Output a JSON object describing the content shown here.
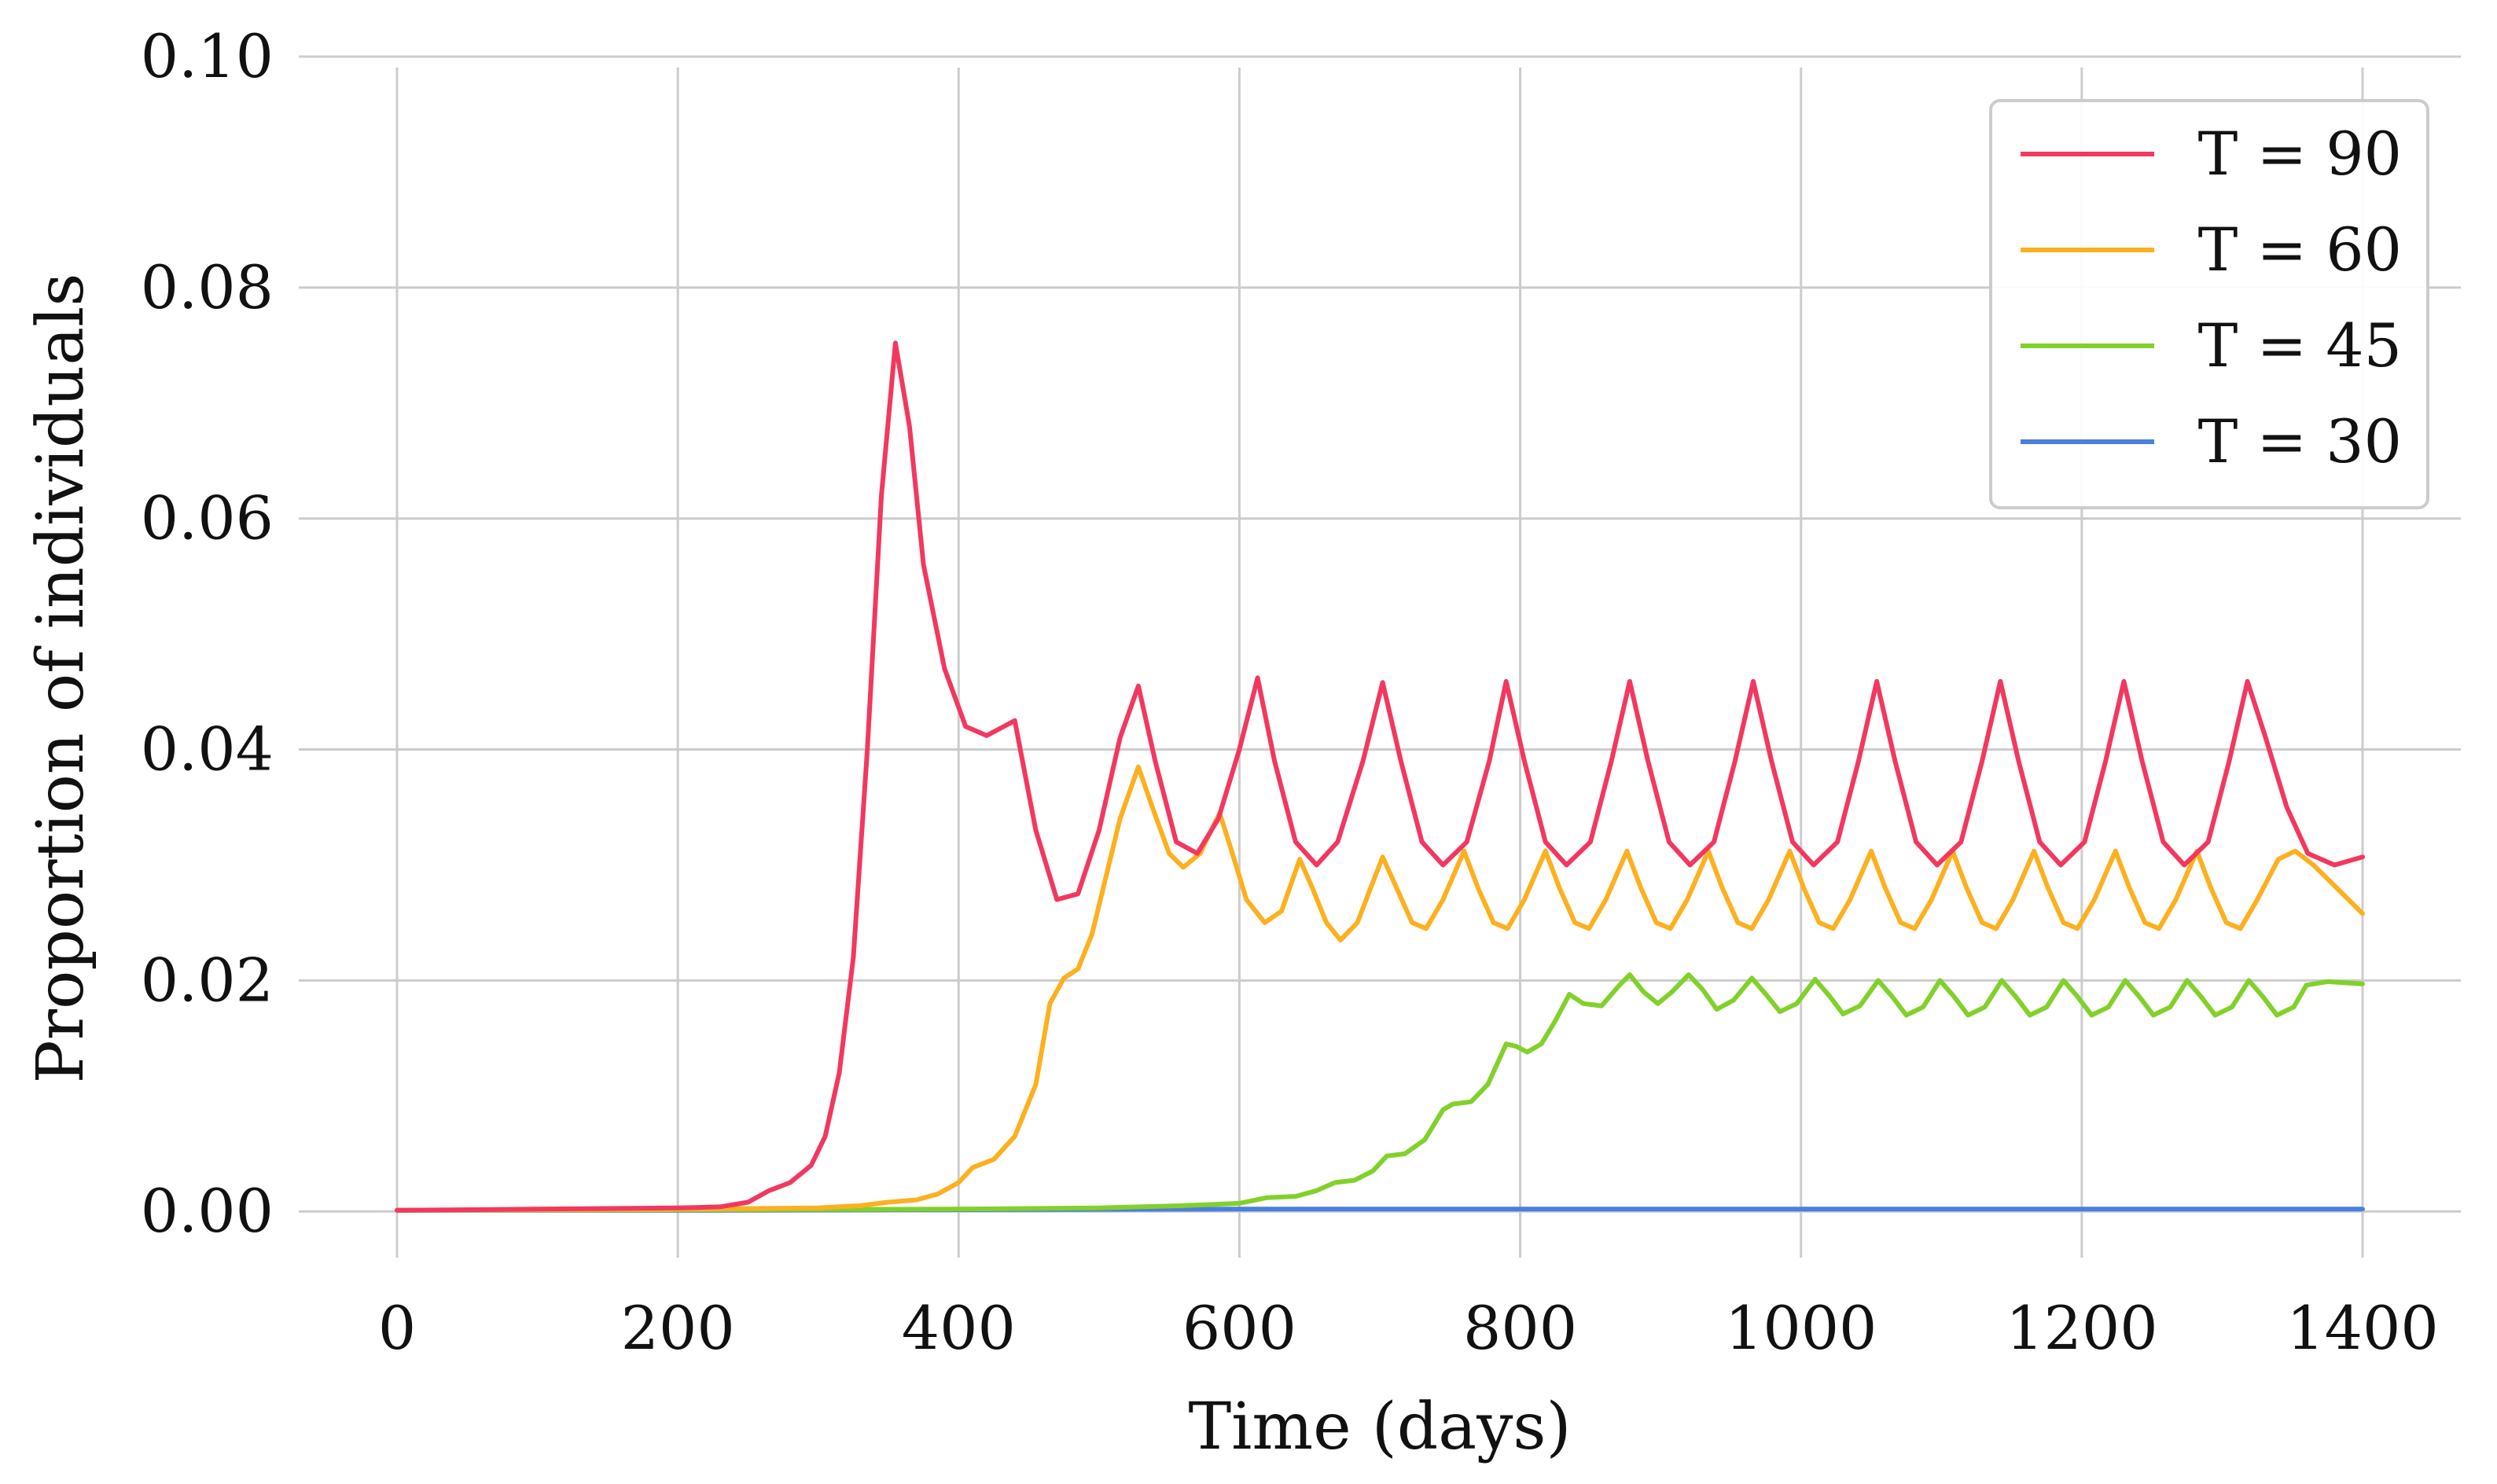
{
  "chart_data": {
    "type": "line",
    "xlabel": "Time (days)",
    "ylabel": "Proportion of individuals",
    "xlim": [
      -70,
      1470
    ],
    "ylim": [
      -0.004,
      0.1
    ],
    "x_ticks": [
      "0",
      "200",
      "400",
      "600",
      "800",
      "1000",
      "1200",
      "1400"
    ],
    "y_ticks": [
      "0.00",
      "0.02",
      "0.04",
      "0.06",
      "0.08",
      "0.10"
    ],
    "grid": true,
    "legend_position": "top-right",
    "series": [
      {
        "name": "T = 90",
        "color": "#f2385f",
        "points": [
          [
            0,
            0.0001
          ],
          [
            100,
            0.0002
          ],
          [
            200,
            0.0003
          ],
          [
            230,
            0.0004
          ],
          [
            250,
            0.0008
          ],
          [
            265,
            0.0018
          ],
          [
            280,
            0.0025
          ],
          [
            295,
            0.004
          ],
          [
            305,
            0.0065
          ],
          [
            315,
            0.012
          ],
          [
            325,
            0.022
          ],
          [
            335,
            0.04
          ],
          [
            345,
            0.062
          ],
          [
            355,
            0.0752
          ],
          [
            365,
            0.068
          ],
          [
            375,
            0.056
          ],
          [
            390,
            0.047
          ],
          [
            405,
            0.042
          ],
          [
            420,
            0.0412
          ],
          [
            440,
            0.0425
          ],
          [
            455,
            0.033
          ],
          [
            470,
            0.027
          ],
          [
            485,
            0.0275
          ],
          [
            500,
            0.033
          ],
          [
            515,
            0.041
          ],
          [
            528,
            0.0455
          ],
          [
            540,
            0.039
          ],
          [
            555,
            0.032
          ],
          [
            570,
            0.031
          ],
          [
            585,
            0.034
          ],
          [
            600,
            0.04
          ],
          [
            613,
            0.0462
          ],
          [
            625,
            0.039
          ],
          [
            640,
            0.032
          ],
          [
            655,
            0.03
          ],
          [
            670,
            0.032
          ],
          [
            688,
            0.039
          ],
          [
            702,
            0.0458
          ],
          [
            715,
            0.039
          ],
          [
            730,
            0.032
          ],
          [
            745,
            0.03
          ],
          [
            762,
            0.032
          ],
          [
            778,
            0.039
          ],
          [
            790,
            0.0459
          ],
          [
            803,
            0.039
          ],
          [
            818,
            0.032
          ],
          [
            833,
            0.03
          ],
          [
            850,
            0.032
          ],
          [
            865,
            0.039
          ],
          [
            878,
            0.0459
          ],
          [
            891,
            0.039
          ],
          [
            906,
            0.032
          ],
          [
            921,
            0.03
          ],
          [
            938,
            0.032
          ],
          [
            953,
            0.039
          ],
          [
            966,
            0.0459
          ],
          [
            979,
            0.039
          ],
          [
            994,
            0.032
          ],
          [
            1009,
            0.03
          ],
          [
            1026,
            0.032
          ],
          [
            1041,
            0.039
          ],
          [
            1054,
            0.0459
          ],
          [
            1067,
            0.039
          ],
          [
            1082,
            0.032
          ],
          [
            1097,
            0.03
          ],
          [
            1114,
            0.032
          ],
          [
            1129,
            0.039
          ],
          [
            1142,
            0.0459
          ],
          [
            1155,
            0.039
          ],
          [
            1170,
            0.032
          ],
          [
            1185,
            0.03
          ],
          [
            1202,
            0.032
          ],
          [
            1217,
            0.039
          ],
          [
            1230,
            0.0459
          ],
          [
            1243,
            0.039
          ],
          [
            1258,
            0.032
          ],
          [
            1273,
            0.03
          ],
          [
            1290,
            0.032
          ],
          [
            1305,
            0.039
          ],
          [
            1318,
            0.0459
          ],
          [
            1331,
            0.041
          ],
          [
            1346,
            0.035
          ],
          [
            1361,
            0.031
          ],
          [
            1380,
            0.03
          ],
          [
            1400,
            0.0307
          ]
        ]
      },
      {
        "name": "T = 60",
        "color": "#fdb01f",
        "points": [
          [
            0,
            0.0001
          ],
          [
            200,
            0.0002
          ],
          [
            300,
            0.0003
          ],
          [
            330,
            0.0005
          ],
          [
            350,
            0.0008
          ],
          [
            370,
            0.001
          ],
          [
            385,
            0.0015
          ],
          [
            400,
            0.0025
          ],
          [
            410,
            0.0038
          ],
          [
            425,
            0.0045
          ],
          [
            440,
            0.0065
          ],
          [
            455,
            0.011
          ],
          [
            465,
            0.018
          ],
          [
            475,
            0.0202
          ],
          [
            485,
            0.021
          ],
          [
            495,
            0.024
          ],
          [
            505,
            0.029
          ],
          [
            515,
            0.034
          ],
          [
            528,
            0.0385
          ],
          [
            538,
            0.035
          ],
          [
            550,
            0.031
          ],
          [
            560,
            0.0298
          ],
          [
            572,
            0.031
          ],
          [
            586,
            0.0345
          ],
          [
            595,
            0.031
          ],
          [
            605,
            0.027
          ],
          [
            618,
            0.025
          ],
          [
            630,
            0.026
          ],
          [
            643,
            0.0305
          ],
          [
            652,
            0.028
          ],
          [
            662,
            0.025
          ],
          [
            672,
            0.0235
          ],
          [
            684,
            0.025
          ],
          [
            702,
            0.0307
          ],
          [
            712,
            0.028
          ],
          [
            723,
            0.025
          ],
          [
            733,
            0.0245
          ],
          [
            745,
            0.027
          ],
          [
            760,
            0.0312
          ],
          [
            770,
            0.028
          ],
          [
            781,
            0.025
          ],
          [
            791,
            0.0245
          ],
          [
            803,
            0.027
          ],
          [
            818,
            0.0312
          ],
          [
            828,
            0.028
          ],
          [
            839,
            0.025
          ],
          [
            849,
            0.0245
          ],
          [
            861,
            0.027
          ],
          [
            876,
            0.0312
          ],
          [
            886,
            0.028
          ],
          [
            897,
            0.025
          ],
          [
            907,
            0.0245
          ],
          [
            919,
            0.027
          ],
          [
            934,
            0.0312
          ],
          [
            944,
            0.028
          ],
          [
            955,
            0.025
          ],
          [
            965,
            0.0245
          ],
          [
            977,
            0.027
          ],
          [
            992,
            0.0312
          ],
          [
            1002,
            0.028
          ],
          [
            1013,
            0.025
          ],
          [
            1023,
            0.0245
          ],
          [
            1035,
            0.027
          ],
          [
            1050,
            0.0312
          ],
          [
            1060,
            0.028
          ],
          [
            1071,
            0.025
          ],
          [
            1081,
            0.0245
          ],
          [
            1093,
            0.027
          ],
          [
            1108,
            0.0312
          ],
          [
            1118,
            0.028
          ],
          [
            1129,
            0.025
          ],
          [
            1139,
            0.0245
          ],
          [
            1151,
            0.027
          ],
          [
            1166,
            0.0312
          ],
          [
            1176,
            0.028
          ],
          [
            1187,
            0.025
          ],
          [
            1197,
            0.0245
          ],
          [
            1209,
            0.027
          ],
          [
            1224,
            0.0312
          ],
          [
            1234,
            0.028
          ],
          [
            1245,
            0.025
          ],
          [
            1255,
            0.0245
          ],
          [
            1267,
            0.027
          ],
          [
            1282,
            0.0312
          ],
          [
            1292,
            0.028
          ],
          [
            1303,
            0.025
          ],
          [
            1313,
            0.0245
          ],
          [
            1325,
            0.027
          ],
          [
            1340,
            0.0305
          ],
          [
            1352,
            0.0312
          ],
          [
            1365,
            0.03
          ],
          [
            1380,
            0.0282
          ],
          [
            1400,
            0.0258
          ]
        ]
      },
      {
        "name": "T = 45",
        "color": "#82d12b",
        "points": [
          [
            0,
            0.0001
          ],
          [
            400,
            0.0002
          ],
          [
            500,
            0.0003
          ],
          [
            560,
            0.0005
          ],
          [
            600,
            0.0007
          ],
          [
            620,
            0.0012
          ],
          [
            640,
            0.0013
          ],
          [
            655,
            0.0018
          ],
          [
            668,
            0.0025
          ],
          [
            682,
            0.0027
          ],
          [
            695,
            0.0035
          ],
          [
            705,
            0.0048
          ],
          [
            718,
            0.005
          ],
          [
            732,
            0.0062
          ],
          [
            745,
            0.0088
          ],
          [
            752,
            0.0093
          ],
          [
            765,
            0.0095
          ],
          [
            777,
            0.011
          ],
          [
            790,
            0.0145
          ],
          [
            797,
            0.0143
          ],
          [
            805,
            0.0138
          ],
          [
            815,
            0.0145
          ],
          [
            825,
            0.0165
          ],
          [
            835,
            0.0188
          ],
          [
            845,
            0.018
          ],
          [
            858,
            0.0178
          ],
          [
            870,
            0.0195
          ],
          [
            878,
            0.0205
          ],
          [
            888,
            0.019
          ],
          [
            898,
            0.018
          ],
          [
            908,
            0.019
          ],
          [
            920,
            0.0205
          ],
          [
            930,
            0.0192
          ],
          [
            940,
            0.0175
          ],
          [
            952,
            0.0183
          ],
          [
            965,
            0.0202
          ],
          [
            975,
            0.0188
          ],
          [
            985,
            0.0173
          ],
          [
            997,
            0.018
          ],
          [
            1010,
            0.0201
          ],
          [
            1020,
            0.0187
          ],
          [
            1030,
            0.0171
          ],
          [
            1042,
            0.0178
          ],
          [
            1055,
            0.02
          ],
          [
            1065,
            0.0186
          ],
          [
            1075,
            0.017
          ],
          [
            1087,
            0.0177
          ],
          [
            1099,
            0.02
          ],
          [
            1109,
            0.0186
          ],
          [
            1119,
            0.017
          ],
          [
            1131,
            0.0177
          ],
          [
            1143,
            0.02
          ],
          [
            1153,
            0.0186
          ],
          [
            1163,
            0.017
          ],
          [
            1175,
            0.0177
          ],
          [
            1187,
            0.02
          ],
          [
            1197,
            0.0186
          ],
          [
            1207,
            0.017
          ],
          [
            1219,
            0.0177
          ],
          [
            1231,
            0.02
          ],
          [
            1241,
            0.0186
          ],
          [
            1251,
            0.017
          ],
          [
            1263,
            0.0177
          ],
          [
            1275,
            0.02
          ],
          [
            1285,
            0.0186
          ],
          [
            1295,
            0.017
          ],
          [
            1307,
            0.0177
          ],
          [
            1319,
            0.02
          ],
          [
            1329,
            0.0186
          ],
          [
            1339,
            0.017
          ],
          [
            1351,
            0.0177
          ],
          [
            1360,
            0.0196
          ],
          [
            1375,
            0.0199
          ],
          [
            1400,
            0.0197
          ]
        ]
      },
      {
        "name": "T = 30",
        "color": "#4a7fdc",
        "points": [
          [
            0,
            0.0001
          ],
          [
            200,
            0.0001
          ],
          [
            400,
            0.00015
          ],
          [
            600,
            0.0002
          ],
          [
            800,
            0.0002
          ],
          [
            1000,
            0.0002
          ],
          [
            1200,
            0.0002
          ],
          [
            1400,
            0.0002
          ]
        ]
      }
    ]
  }
}
